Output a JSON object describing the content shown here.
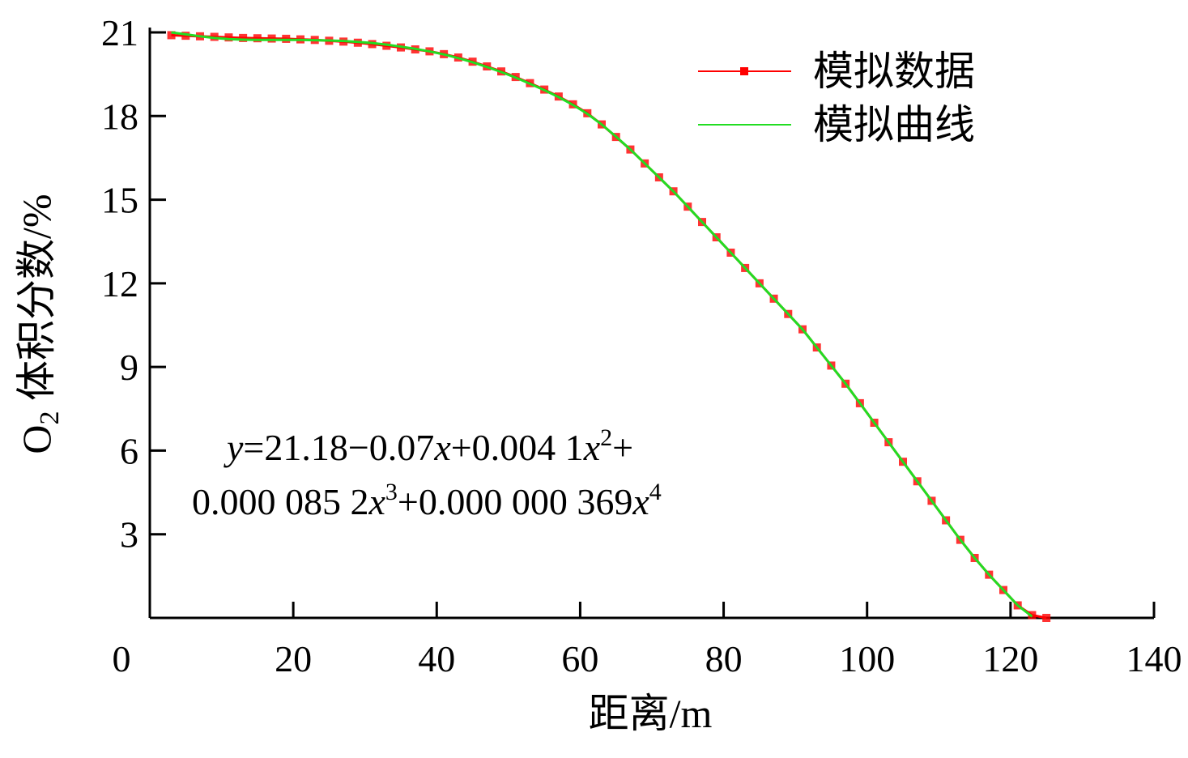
{
  "chart_data": {
    "type": "line",
    "xlabel": "距离/m",
    "ylabel": {
      "main": "O",
      "sub": "2",
      "rest": " 体积分数/%"
    },
    "xlim": [
      0,
      140
    ],
    "xticks": [
      0,
      20,
      40,
      60,
      80,
      100,
      120,
      140
    ],
    "ylim": [
      0,
      21
    ],
    "yticks": [
      3,
      6,
      9,
      12,
      15,
      18,
      21
    ],
    "legend": "upper right",
    "x": [
      3,
      5,
      7,
      9,
      11,
      13,
      15,
      17,
      19,
      21,
      23,
      25,
      27,
      29,
      31,
      33,
      35,
      37,
      39,
      41,
      43,
      45,
      47,
      49,
      51,
      53,
      55,
      57,
      59,
      61,
      63,
      65,
      67,
      69,
      71,
      73,
      75,
      77,
      79,
      81,
      83,
      85,
      87,
      89,
      91,
      93,
      95,
      97,
      99,
      101,
      103,
      105,
      107,
      109,
      111,
      113,
      115,
      117,
      119,
      121,
      123,
      125
    ],
    "series": [
      {
        "name": "模拟数据",
        "color": "#ff0000",
        "markers": true,
        "values": [
          20.9,
          20.88,
          20.86,
          20.84,
          20.82,
          20.8,
          20.79,
          20.78,
          20.77,
          20.75,
          20.73,
          20.7,
          20.67,
          20.63,
          20.58,
          20.52,
          20.46,
          20.39,
          20.32,
          20.22,
          20.1,
          19.95,
          19.78,
          19.6,
          19.4,
          19.18,
          18.95,
          18.7,
          18.42,
          18.1,
          17.7,
          17.25,
          16.8,
          16.3,
          15.8,
          15.3,
          14.75,
          14.2,
          13.65,
          13.1,
          12.55,
          12.0,
          11.45,
          10.9,
          10.35,
          9.7,
          9.05,
          8.4,
          7.7,
          7.0,
          6.3,
          5.6,
          4.9,
          4.2,
          3.5,
          2.8,
          2.15,
          1.55,
          1.0,
          0.45,
          0.1,
          0
        ]
      },
      {
        "name": "模拟曲线",
        "color": "#22dd22",
        "markers": false,
        "values": [
          21.0,
          20.93,
          20.86,
          20.8,
          20.76,
          20.74,
          20.73,
          20.73,
          20.73,
          20.73,
          20.72,
          20.71,
          20.69,
          20.66,
          20.62,
          20.56,
          20.49,
          20.41,
          20.32,
          20.21,
          20.08,
          19.93,
          19.76,
          19.58,
          19.38,
          19.16,
          18.93,
          18.68,
          18.4,
          18.08,
          17.7,
          17.26,
          16.8,
          16.3,
          15.8,
          15.3,
          14.75,
          14.2,
          13.65,
          13.1,
          12.55,
          12.0,
          11.45,
          10.9,
          10.35,
          9.7,
          9.05,
          8.4,
          7.7,
          7.0,
          6.3,
          5.6,
          4.9,
          4.2,
          3.5,
          2.8,
          2.15,
          1.55,
          1.0,
          0.45,
          0.05,
          null
        ]
      }
    ],
    "annotation": [
      [
        {
          "text": "y",
          "italic": true
        },
        {
          "text": "=21.18−0.07"
        },
        {
          "text": "x",
          "italic": true
        },
        {
          "text": "+0.004 1"
        },
        {
          "text": "x",
          "italic": true
        },
        {
          "text": "2",
          "sup": true
        },
        {
          "text": "+"
        }
      ],
      [
        {
          "text": "0.000 085 2"
        },
        {
          "text": "x",
          "italic": true
        },
        {
          "text": "3",
          "sup": true
        },
        {
          "text": "+0.000 000 369"
        },
        {
          "text": "x",
          "italic": true
        },
        {
          "text": "4",
          "sup": true
        }
      ]
    ]
  }
}
